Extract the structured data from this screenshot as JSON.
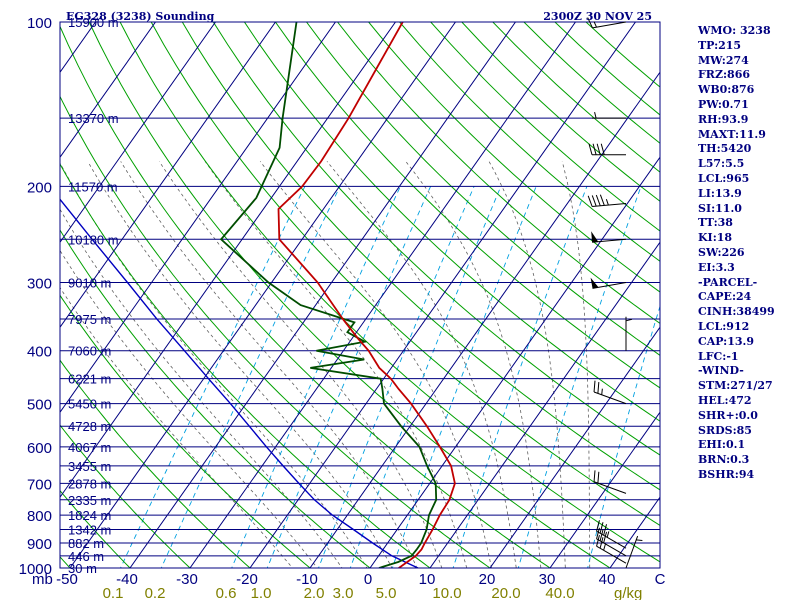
{
  "header": {
    "station": "EG328 (3238) Sounding",
    "time": "2300Z 30 NOV 25"
  },
  "indices": [
    "WMO: 3238",
    "TP:215",
    "MW:274",
    "FRZ:866",
    "WB0:876",
    "PW:0.71",
    "RH:93.9",
    "MAXT:11.9",
    "TH:5420",
    "L57:5.5",
    "LCL:965",
    "LI:13.9",
    "SI:11.0",
    "TT:38",
    "KI:18",
    "SW:226",
    "EI:3.3",
    "-PARCEL-",
    "CAPE:24",
    "CINH:38499",
    "LCL:912",
    "CAP:13.9",
    "LFC:-1",
    "-WIND-",
    "STM:271/27",
    "HEL:472",
    "SHR+:0.0",
    "SRDS:85",
    "EHI:0.1",
    "BRN:0.3",
    "BSHR:94"
  ],
  "colors": {
    "isobar": "#000080",
    "isotherm": "#000080",
    "dry_adiabat": "#00a000",
    "mixing_ratio": "#00a0e0",
    "moist_adiabat": "#606060",
    "temperature": "#c00000",
    "dewpoint": "#004d00",
    "parcel": "#0000c0",
    "wind_barb": "#000000",
    "mixing_label": "#808000"
  },
  "chart_data": {
    "type": "skew-t log-p",
    "yaxis_unit": "mb",
    "x_tick_labels": [
      "-50",
      "-40",
      "-30",
      "-20",
      "-10",
      "0",
      "10",
      "20",
      "30",
      "40",
      "C"
    ],
    "mixing_ratio_unit": "g/kg",
    "mixing_ratio_labels": [
      "0.1",
      "0.2",
      "0.6",
      "1.0",
      "2.0",
      "3.0",
      "5.0",
      "10.0",
      "20.0",
      "40.0"
    ],
    "pressure_levels": [
      {
        "p": 100,
        "label": "100",
        "height": "15900 m"
      },
      {
        "p": 150,
        "label": "",
        "height": "13370 m"
      },
      {
        "p": 200,
        "label": "200",
        "height": "11570 m"
      },
      {
        "p": 250,
        "label": "",
        "height": "10180 m"
      },
      {
        "p": 300,
        "label": "300",
        "height": "9010 m"
      },
      {
        "p": 350,
        "label": "",
        "height": "7975 m"
      },
      {
        "p": 400,
        "label": "400",
        "height": "7060 m"
      },
      {
        "p": 450,
        "label": "",
        "height": "6221 m"
      },
      {
        "p": 500,
        "label": "500",
        "height": "5450 m"
      },
      {
        "p": 550,
        "label": "",
        "height": "4728 m"
      },
      {
        "p": 600,
        "label": "600",
        "height": "4067 m"
      },
      {
        "p": 650,
        "label": "",
        "height": "3455 m"
      },
      {
        "p": 700,
        "label": "700",
        "height": "2878 m"
      },
      {
        "p": 750,
        "label": "",
        "height": "2335 m"
      },
      {
        "p": 800,
        "label": "800",
        "height": "1824 m"
      },
      {
        "p": 850,
        "label": "",
        "height": "1342 m"
      },
      {
        "p": 900,
        "label": "900",
        "height": "882 m"
      },
      {
        "p": 950,
        "label": "",
        "height": "446 m"
      },
      {
        "p": 1000,
        "label": "1000",
        "height": "30 m"
      }
    ],
    "temperature": [
      {
        "p": 1000,
        "t": 4.8
      },
      {
        "p": 975,
        "t": 5.5
      },
      {
        "p": 950,
        "t": 6.2
      },
      {
        "p": 925,
        "t": 6.4
      },
      {
        "p": 900,
        "t": 6.2
      },
      {
        "p": 850,
        "t": 5.9
      },
      {
        "p": 800,
        "t": 5.4
      },
      {
        "p": 750,
        "t": 5.2
      },
      {
        "p": 700,
        "t": 4.2
      },
      {
        "p": 650,
        "t": 1.5
      },
      {
        "p": 600,
        "t": -2.6
      },
      {
        "p": 550,
        "t": -7.2
      },
      {
        "p": 500,
        "t": -12.5
      },
      {
        "p": 470,
        "t": -16.3
      },
      {
        "p": 450,
        "t": -18.8
      },
      {
        "p": 430,
        "t": -22.0
      },
      {
        "p": 400,
        "t": -25.8
      },
      {
        "p": 380,
        "t": -29.0
      },
      {
        "p": 350,
        "t": -33.8
      },
      {
        "p": 300,
        "t": -42.3
      },
      {
        "p": 250,
        "t": -53.8
      },
      {
        "p": 220,
        "t": -57.5
      },
      {
        "p": 200,
        "t": -56.2
      },
      {
        "p": 180,
        "t": -56.0
      },
      {
        "p": 150,
        "t": -56.5
      },
      {
        "p": 100,
        "t": -58.8
      }
    ],
    "dewpoint": [
      {
        "p": 1000,
        "td": 1.5
      },
      {
        "p": 975,
        "td": 4.0
      },
      {
        "p": 950,
        "td": 5.5
      },
      {
        "p": 925,
        "td": 5.6
      },
      {
        "p": 900,
        "td": 5.6
      },
      {
        "p": 850,
        "td": 4.9
      },
      {
        "p": 800,
        "td": 3.6
      },
      {
        "p": 750,
        "td": 3.0
      },
      {
        "p": 700,
        "td": 1.0
      },
      {
        "p": 650,
        "td": -2.5
      },
      {
        "p": 600,
        "td": -6.0
      },
      {
        "p": 550,
        "td": -11.5
      },
      {
        "p": 500,
        "td": -17.0
      },
      {
        "p": 470,
        "td": -19.0
      },
      {
        "p": 450,
        "td": -20.5
      },
      {
        "p": 430,
        "td": -33.5
      },
      {
        "p": 415,
        "td": -25.5
      },
      {
        "p": 400,
        "td": -34.5
      },
      {
        "p": 385,
        "td": -27.5
      },
      {
        "p": 370,
        "td": -31.5
      },
      {
        "p": 355,
        "td": -31.5
      },
      {
        "p": 330,
        "td": -42.5
      },
      {
        "p": 300,
        "td": -50.5
      },
      {
        "p": 250,
        "td": -63.5
      },
      {
        "p": 210,
        "td": -62.5
      },
      {
        "p": 170,
        "td": -64.5
      },
      {
        "p": 150,
        "td": -67.5
      },
      {
        "p": 100,
        "td": -76.5
      }
    ],
    "parcel": [
      {
        "p": 1000,
        "t": 8.0
      },
      {
        "p": 950,
        "t": 2.2
      },
      {
        "p": 900,
        "t": -2.5
      },
      {
        "p": 850,
        "t": -7.3
      },
      {
        "p": 800,
        "t": -12.5
      },
      {
        "p": 750,
        "t": -17.3
      },
      {
        "p": 700,
        "t": -21.8
      },
      {
        "p": 650,
        "t": -26.5
      },
      {
        "p": 600,
        "t": -31.5
      },
      {
        "p": 550,
        "t": -36.8
      },
      {
        "p": 500,
        "t": -42.6
      },
      {
        "p": 450,
        "t": -49.2
      },
      {
        "p": 400,
        "t": -56.5
      },
      {
        "p": 350,
        "t": -64.8
      },
      {
        "p": 300,
        "t": -74.0
      },
      {
        "p": 250,
        "t": -85.0
      },
      {
        "p": 200,
        "t": -98.3
      },
      {
        "p": 150,
        "t": -115.0
      },
      {
        "p": 125,
        "t": -127.0
      }
    ],
    "winds": [
      {
        "p": 1000,
        "dir": 20,
        "kt": 5
      },
      {
        "p": 980,
        "dir": 300,
        "kt": 25
      },
      {
        "p": 950,
        "dir": 300,
        "kt": 30
      },
      {
        "p": 920,
        "dir": 300,
        "kt": 35
      },
      {
        "p": 730,
        "dir": 290,
        "kt": 20
      },
      {
        "p": 500,
        "dir": 290,
        "kt": 25
      },
      {
        "p": 400,
        "dir": 0,
        "kt": 5
      },
      {
        "p": 300,
        "dir": 260,
        "kt": 50
      },
      {
        "p": 250,
        "dir": 265,
        "kt": 50
      },
      {
        "p": 215,
        "dir": 265,
        "kt": 45
      },
      {
        "p": 175,
        "dir": 270,
        "kt": 40
      },
      {
        "p": 150,
        "dir": 270,
        "kt": 5
      },
      {
        "p": 100,
        "dir": 260,
        "kt": 15
      }
    ]
  }
}
